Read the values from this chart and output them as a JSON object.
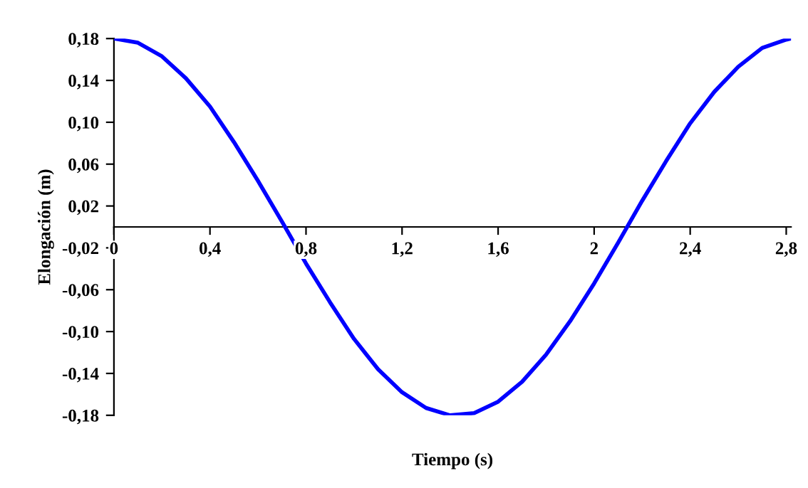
{
  "chart_data": {
    "type": "line",
    "xlabel": "Tiempo (s)",
    "ylabel": "Elongación (m)",
    "x": [
      0,
      0.1,
      0.2,
      0.3,
      0.4,
      0.5,
      0.6,
      0.7,
      0.8,
      0.9,
      1.0,
      1.1,
      1.2,
      1.3,
      1.4,
      1.5,
      1.6,
      1.7,
      1.8,
      1.9,
      2.0,
      2.1,
      2.2,
      2.3,
      2.4,
      2.5,
      2.6,
      2.7,
      2.8,
      2.82
    ],
    "series": [
      {
        "color": "#0000ff",
        "values": [
          0.18,
          0.176,
          0.163,
          0.142,
          0.115,
          0.081,
          0.044,
          0.005,
          -0.035,
          -0.072,
          -0.107,
          -0.136,
          -0.158,
          -0.173,
          -0.18,
          -0.178,
          -0.167,
          -0.148,
          -0.122,
          -0.09,
          -0.054,
          -0.015,
          0.025,
          0.063,
          0.099,
          0.129,
          0.153,
          0.171,
          0.179,
          0.18
        ]
      }
    ],
    "xlim": [
      0,
      2.82
    ],
    "ylim": [
      -0.18,
      0.18
    ],
    "xticks": [
      0,
      {
        "value": 0.4,
        "label": "0,4"
      },
      {
        "value": 0.8,
        "label": "0,8"
      },
      {
        "value": 1.2,
        "label": "1,2"
      },
      {
        "value": 1.6,
        "label": "1,6"
      },
      2,
      {
        "value": 2.4,
        "label": "2,4"
      },
      {
        "value": 2.8,
        "label": "2,8"
      }
    ],
    "yticks": [
      {
        "value": -0.18,
        "label": "-0,18"
      },
      {
        "value": -0.14,
        "label": "-0,14"
      },
      {
        "value": -0.1,
        "label": "-0,10"
      },
      {
        "value": -0.06,
        "label": "-0,06"
      },
      {
        "value": -0.02,
        "label": "-0,02"
      },
      {
        "value": 0.02,
        "label": "0,02"
      },
      {
        "value": 0.06,
        "label": "0,06"
      },
      {
        "value": 0.1,
        "label": "0,10"
      },
      {
        "value": 0.14,
        "label": "0,14"
      },
      {
        "value": 0.18,
        "label": "0,18"
      }
    ],
    "grid": false,
    "marker": "none",
    "line_style": "solid"
  }
}
